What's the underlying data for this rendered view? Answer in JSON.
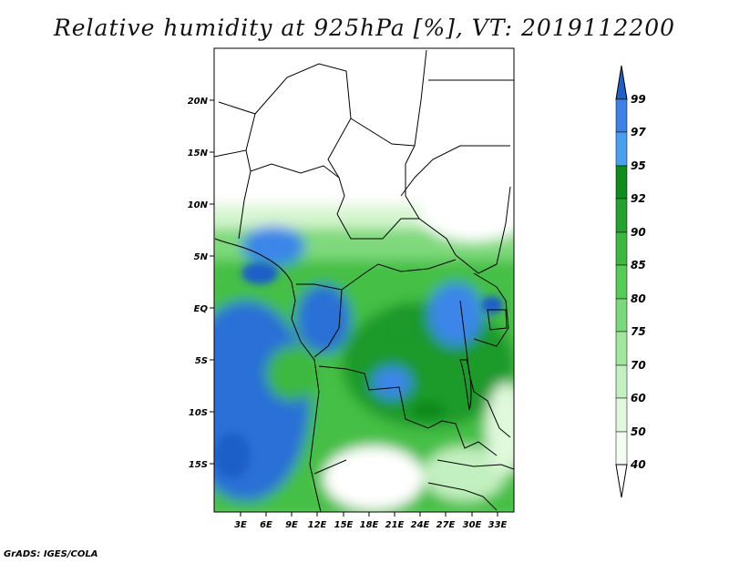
{
  "title": "Relative humidity at 925hPa [%], VT: 2019112200",
  "credit": "GrADS: IGES/COLA",
  "map": {
    "lat_ticks": [
      "20N",
      "15N",
      "10N",
      "5N",
      "EQ",
      "5S",
      "10S",
      "15S"
    ],
    "lon_ticks": [
      "3E",
      "6E",
      "9E",
      "12E",
      "15E",
      "18E",
      "21E",
      "24E",
      "27E",
      "30E",
      "33E"
    ]
  },
  "colorbar": {
    "labels": [
      "99",
      "97",
      "95",
      "92",
      "90",
      "85",
      "80",
      "75",
      "70",
      "60",
      "50",
      "40"
    ],
    "colors": [
      "#1e5fc8",
      "#3c82e6",
      "#4aa0f0",
      "#0e8c1c",
      "#23a32e",
      "#3cb83f",
      "#55cc55",
      "#7ad97a",
      "#a0e69c",
      "#c3f0c0",
      "#e0f8dc",
      "#f4fdf2",
      "#ffffff"
    ]
  },
  "chart_data": {
    "type": "heatmap",
    "variable": "Relative humidity at 925hPa",
    "unit": "%",
    "valid_time": "2019112200",
    "lon_range": [
      0,
      35
    ],
    "lat_range": [
      -20,
      25
    ],
    "contour_levels": [
      40,
      50,
      60,
      70,
      75,
      80,
      85,
      90,
      92,
      95,
      97,
      99
    ]
  }
}
